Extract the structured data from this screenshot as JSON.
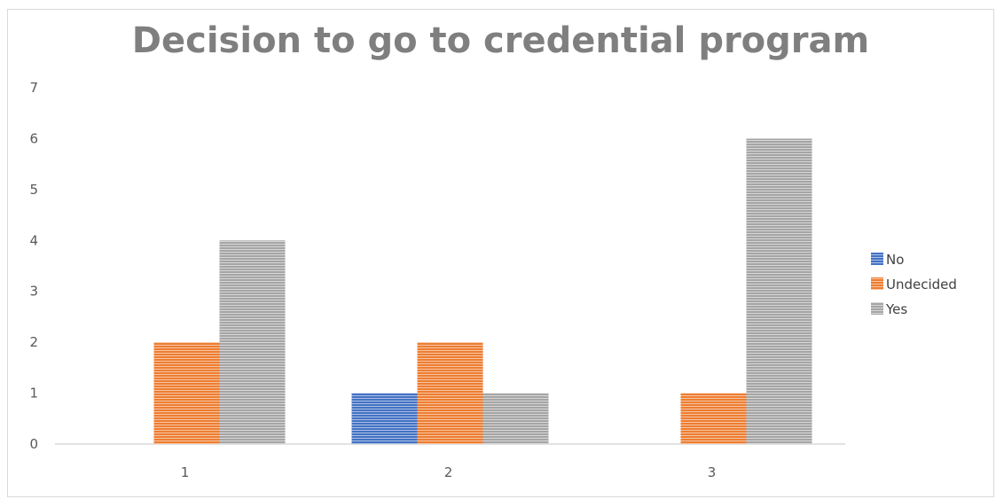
{
  "chart_data": {
    "type": "bar",
    "title": "Decision to go to credential program",
    "xlabel": "",
    "ylabel": "",
    "categories": [
      "1",
      "2",
      "3"
    ],
    "ylim": [
      0,
      7
    ],
    "yticks": [
      "0",
      "1",
      "2",
      "3",
      "4",
      "5",
      "6",
      "7"
    ],
    "grid": false,
    "legend_position": "right",
    "series": [
      {
        "name": "No",
        "color": "#4472c4",
        "values": [
          0,
          1,
          0
        ]
      },
      {
        "name": "Undecided",
        "color": "#ed7d31",
        "values": [
          2,
          2,
          1
        ]
      },
      {
        "name": "Yes",
        "color": "#a5a5a5",
        "values": [
          4,
          1,
          6
        ]
      }
    ]
  }
}
